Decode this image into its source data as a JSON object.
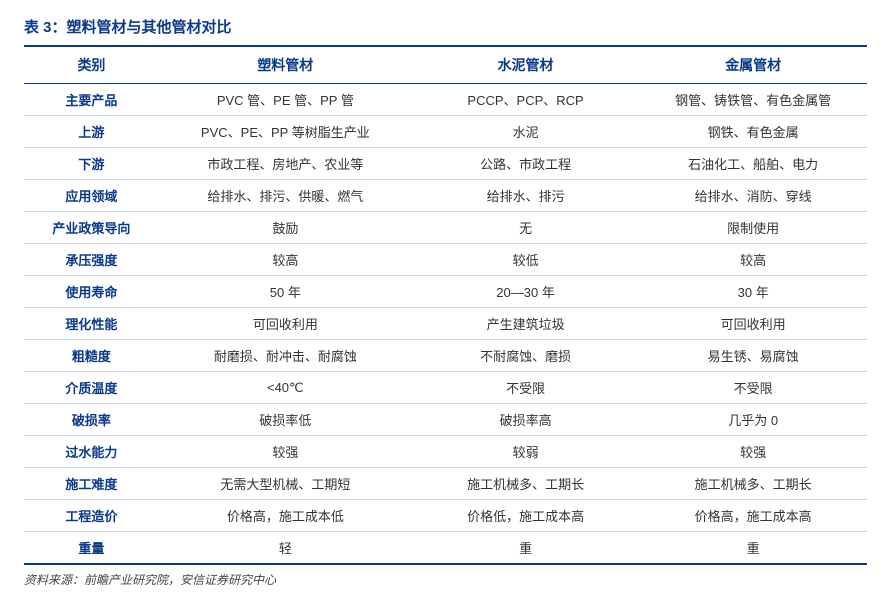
{
  "title": "表 3：塑料管材与其他管材对比",
  "columns": [
    "类别",
    "塑料管材",
    "水泥管材",
    "金属管材"
  ],
  "rows": [
    [
      "主要产品",
      "PVC 管、PE 管、PP 管",
      "PCCP、PCP、RCP",
      "钢管、铸铁管、有色金属管"
    ],
    [
      "上游",
      "PVC、PE、PP 等树脂生产业",
      "水泥",
      "钢铁、有色金属"
    ],
    [
      "下游",
      "市政工程、房地产、农业等",
      "公路、市政工程",
      "石油化工、船舶、电力"
    ],
    [
      "应用领域",
      "给排水、排污、供暖、燃气",
      "给排水、排污",
      "给排水、消防、穿线"
    ],
    [
      "产业政策导向",
      "鼓励",
      "无",
      "限制使用"
    ],
    [
      "承压强度",
      "较高",
      "较低",
      "较高"
    ],
    [
      "使用寿命",
      "50 年",
      "20—30 年",
      "30 年"
    ],
    [
      "理化性能",
      "可回收利用",
      "产生建筑垃圾",
      "可回收利用"
    ],
    [
      "粗糙度",
      "耐磨损、耐冲击、耐腐蚀",
      "不耐腐蚀、磨损",
      "易生锈、易腐蚀"
    ],
    [
      "介质温度",
      "<40℃",
      "不受限",
      "不受限"
    ],
    [
      "破损率",
      "破损率低",
      "破损率高",
      "几乎为 0"
    ],
    [
      "过水能力",
      "较强",
      "较弱",
      "较强"
    ],
    [
      "施工难度",
      "无需大型机械、工期短",
      "施工机械多、工期长",
      "施工机械多、工期长"
    ],
    [
      "工程造价",
      "价格高，施工成本低",
      "价格低，施工成本高",
      "价格高，施工成本高"
    ],
    [
      "重量",
      "轻",
      "重",
      "重"
    ]
  ],
  "source": "资料来源：前瞻产业研究院，安信证券研究中心",
  "colors": {
    "primary": "#0b3a8a",
    "row_border": "#c8d4ea",
    "text": "#333333",
    "bg": "#ffffff"
  }
}
